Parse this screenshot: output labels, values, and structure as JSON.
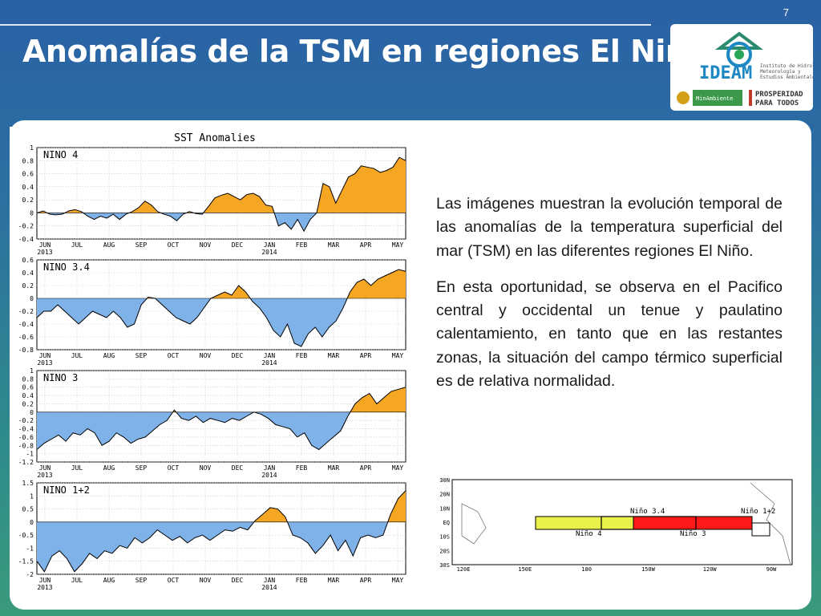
{
  "slide": {
    "number": "7",
    "title": "Anomalías de la TSM en regiones El Niño"
  },
  "logo": {
    "brand": "IDEAM",
    "institute": "Instituto de Hidrología, Meteorología y Estudios Ambientales",
    "ministry": "MinAmbiente",
    "slogan": "PROSPERIDAD PARA TODOS"
  },
  "text": {
    "p1": "Las imágenes muestran la evolución temporal de las anomalías de la temperatura superficial del mar (TSM) en las diferentes regiones El Niño.",
    "p2": "En esta oportunidad, se observa en el Pacifico central y occidental un tenue y paulatino calentamiento, en tanto que en las restantes zonas, la situación del campo térmico superficial es de relativa normalidad."
  },
  "colors": {
    "positive": "#f5a623",
    "negative": "#7fb2e8",
    "nino4": "#e8f04a",
    "nino34": "#e8f04a",
    "nino3": "#ff1a1a"
  },
  "chart_data": {
    "type": "area",
    "title": "SST Anomalies",
    "x_labels": [
      "JUN\n2013",
      "JUL",
      "AUG",
      "SEP",
      "OCT",
      "NOV",
      "DEC",
      "JAN\n2014",
      "FEB",
      "MAR",
      "APR",
      "MAY"
    ],
    "panels": [
      {
        "name": "NINO 4",
        "ylim": [
          -0.4,
          1
        ],
        "yticks": [
          1,
          0.8,
          0.6,
          0.4,
          0.2,
          0,
          -0.2,
          -0.4
        ],
        "values": [
          0,
          0.03,
          -0.02,
          -0.03,
          -0.02,
          0.03,
          0.05,
          0.02,
          -0.05,
          -0.1,
          -0.05,
          -0.08,
          -0.02,
          -0.1,
          -0.02,
          0.02,
          0.08,
          0.18,
          0.12,
          0.02,
          -0.02,
          -0.05,
          -0.12,
          -0.02,
          0.02,
          -0.01,
          -0.02,
          0.1,
          0.23,
          0.27,
          0.3,
          0.25,
          0.2,
          0.28,
          0.3,
          0.25,
          0.12,
          0.1,
          -0.2,
          -0.15,
          -0.25,
          -0.1,
          -0.28,
          -0.1,
          0.0,
          0.45,
          0.4,
          0.15,
          0.35,
          0.55,
          0.6,
          0.72,
          0.7,
          0.68,
          0.62,
          0.65,
          0.7,
          0.85,
          0.8
        ]
      },
      {
        "name": "NINO 3.4",
        "ylim": [
          -0.8,
          0.6
        ],
        "yticks": [
          0.6,
          0.4,
          0.2,
          0,
          -0.2,
          -0.4,
          -0.6,
          -0.8
        ],
        "values": [
          -0.3,
          -0.2,
          -0.2,
          -0.1,
          -0.2,
          -0.3,
          -0.4,
          -0.3,
          -0.2,
          -0.25,
          -0.3,
          -0.2,
          -0.3,
          -0.45,
          -0.4,
          -0.1,
          0.02,
          0.0,
          -0.1,
          -0.2,
          -0.3,
          -0.35,
          -0.4,
          -0.3,
          -0.15,
          0.0,
          0.05,
          0.1,
          0.05,
          0.2,
          0.1,
          -0.05,
          -0.15,
          -0.3,
          -0.5,
          -0.6,
          -0.4,
          -0.7,
          -0.75,
          -0.55,
          -0.45,
          -0.6,
          -0.45,
          -0.35,
          -0.15,
          0.1,
          0.25,
          0.3,
          0.2,
          0.3,
          0.35,
          0.4,
          0.45,
          0.42
        ]
      },
      {
        "name": "NINO 3",
        "ylim": [
          -1.2,
          1
        ],
        "yticks": [
          1,
          0.8,
          0.6,
          0.4,
          0.2,
          0,
          -0.2,
          -0.4,
          -0.6,
          -0.8,
          -1,
          -1.2
        ],
        "values": [
          -0.9,
          -0.75,
          -0.65,
          -0.55,
          -0.7,
          -0.5,
          -0.55,
          -0.4,
          -0.5,
          -0.8,
          -0.7,
          -0.5,
          -0.6,
          -0.75,
          -0.65,
          -0.6,
          -0.45,
          -0.3,
          -0.2,
          0.05,
          -0.15,
          -0.2,
          -0.1,
          -0.25,
          -0.15,
          -0.2,
          -0.25,
          -0.15,
          -0.2,
          -0.1,
          0.0,
          -0.05,
          -0.15,
          -0.3,
          -0.35,
          -0.4,
          -0.6,
          -0.5,
          -0.8,
          -0.9,
          -0.75,
          -0.6,
          -0.45,
          -0.1,
          0.2,
          0.35,
          0.45,
          0.2,
          0.35,
          0.5,
          0.55,
          0.6
        ]
      },
      {
        "name": "NINO 1+2",
        "ylim": [
          -2,
          1.5
        ],
        "yticks": [
          1.5,
          1,
          0.5,
          0,
          -0.5,
          -1,
          -1.5,
          -2
        ],
        "values": [
          -1.5,
          -1.9,
          -1.3,
          -1.1,
          -1.4,
          -1.9,
          -1.6,
          -1.2,
          -1.4,
          -1.1,
          -1.2,
          -0.9,
          -1.0,
          -0.6,
          -0.8,
          -0.6,
          -0.3,
          -0.5,
          -0.7,
          -0.55,
          -0.8,
          -0.6,
          -0.5,
          -0.7,
          -0.5,
          -0.3,
          -0.35,
          -0.2,
          -0.3,
          0.05,
          0.3,
          0.55,
          0.5,
          0.2,
          -0.5,
          -0.6,
          -0.8,
          -1.2,
          -0.9,
          -0.5,
          -1.1,
          -0.7,
          -1.3,
          -0.6,
          -0.5,
          -0.6,
          -0.5,
          0.3,
          0.9,
          1.2
        ]
      }
    ]
  },
  "map": {
    "lat_labels": [
      "30N",
      "20N",
      "10N",
      "EQ",
      "10S",
      "20S",
      "30S"
    ],
    "lon_labels": [
      "120E",
      "150E",
      "180",
      "150W",
      "120W",
      "90W"
    ],
    "regions": [
      "Niño 3.4",
      "Niño 1+2",
      "Niño 4",
      "Niño 3"
    ]
  }
}
